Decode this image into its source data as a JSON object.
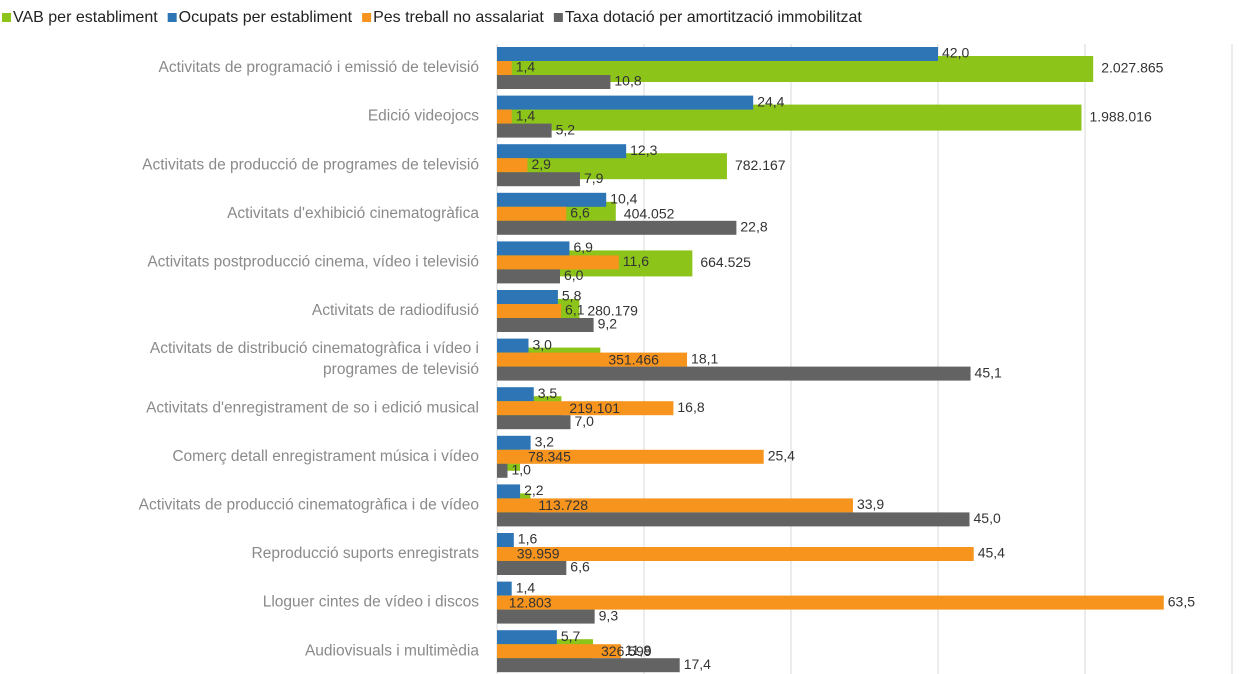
{
  "chart_data": {
    "type": "bar",
    "orientation": "horizontal",
    "categories": [
      "Activitats de programació i emissió de televisió",
      "Edició videojocs",
      "Activitats de producció de programes de televisió",
      "Activitats d'exhibició cinematogràfica",
      "Activitats postproducció cinema, vídeo i televisió",
      "Activitats de radiodifusió",
      [
        "Activitats de distribució cinematogràfica i vídeo i",
        "programes de televisió"
      ],
      "Activitats d'enregistrament de so i edició musical",
      "Comerç detall enregistrament música i vídeo",
      "Activitats de producció cinematogràfica i de vídeo",
      "Reproducció suports enregistrats",
      "Lloguer cintes de vídeo i discos",
      "Audiovisuals i multimèdia"
    ],
    "series": [
      {
        "name": "VAB per establiment",
        "color": "#8cc41a",
        "axis": "x2",
        "values": [
          2027865,
          1988016,
          782167,
          404052,
          664525,
          280179,
          351466,
          219101,
          78345,
          113728,
          39959,
          12803,
          326599
        ],
        "value_labels": [
          "2.027.865",
          "1.988.016",
          "782.167",
          "404.052",
          "664.525",
          "280.179",
          "351.466",
          "219.101",
          "78.345",
          "113.728",
          "39.959",
          "12.803",
          "326.599"
        ]
      },
      {
        "name": "Ocupats per establiment",
        "color": "#2e75b6",
        "values": [
          42.0,
          24.4,
          12.3,
          10.4,
          6.9,
          5.8,
          3.0,
          3.5,
          3.2,
          2.2,
          1.6,
          1.4,
          5.7
        ],
        "value_labels": [
          "42,0",
          "24,4",
          "12,3",
          "10,4",
          "6,9",
          "5,8",
          "3,0",
          "3,5",
          "3,2",
          "2,2",
          "1,6",
          "1,4",
          "5,7"
        ]
      },
      {
        "name": "Pes treball no assalariat",
        "color": "#f7941d",
        "values": [
          1.4,
          1.4,
          2.9,
          6.6,
          11.6,
          6.1,
          18.1,
          16.8,
          25.4,
          33.9,
          45.4,
          63.5,
          11.8
        ],
        "value_labels": [
          "1,4",
          "1,4",
          "2,9",
          "6,6",
          "11,6",
          "6,1",
          "18,1",
          "16,8",
          "25,4",
          "33,9",
          "45,4",
          "63,5",
          "11,8"
        ]
      },
      {
        "name": "Taxa dotació per amortització immobilitzat",
        "color": "#636363",
        "values": [
          10.8,
          5.2,
          7.9,
          22.8,
          6.0,
          9.2,
          45.1,
          7.0,
          1.0,
          45.0,
          6.6,
          9.3,
          17.4
        ],
        "value_labels": [
          "10,8",
          "5,2",
          "7,9",
          "22,8",
          "6,0",
          "9,2",
          "45,1",
          "7,0",
          "1,0",
          "45,0",
          "6,6",
          "9,3",
          "17,4"
        ]
      }
    ],
    "xlim": [
      0,
      70
    ],
    "x2lim": [
      0,
      2500000
    ],
    "x2ticks": [
      0,
      500000,
      1000000,
      1500000,
      2000000,
      2500000
    ],
    "grid": true
  }
}
